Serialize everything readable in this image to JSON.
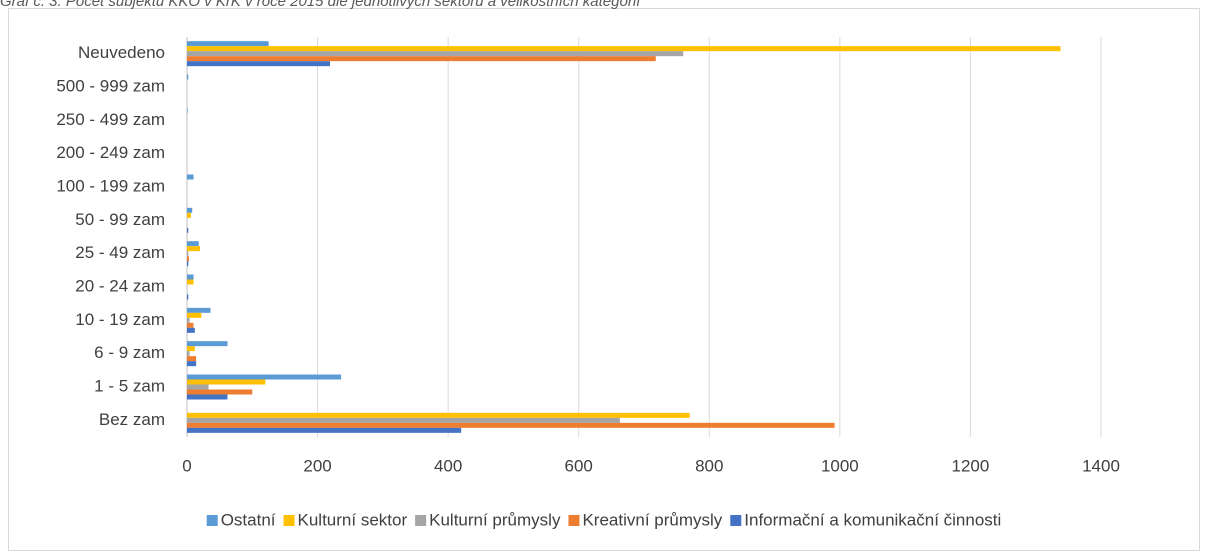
{
  "chart_data": {
    "type": "hbar",
    "title": "Graf č. 3: Počet subjektů KKO v KrK v roce 2015 dle jednotlivých sektorů a velikostních kategorií",
    "categories": [
      "Neuvedeno",
      "500 - 999 zam",
      "250 - 499 zam",
      "200 - 249 zam",
      "100 - 199 zam",
      "50 - 99 zam",
      "25 - 49 zam",
      "20 - 24 zam",
      "10 - 19 zam",
      "6 - 9 zam",
      "1 - 5 zam",
      "Bez zam"
    ],
    "series": [
      {
        "name": "Ostatní",
        "color": "#5b9bd5",
        "values": [
          125,
          2,
          1,
          0,
          10,
          8,
          18,
          10,
          36,
          62,
          236,
          0
        ]
      },
      {
        "name": "Kulturní sektor",
        "color": "#ffc000",
        "values": [
          1338,
          0,
          0,
          0,
          0,
          6,
          20,
          10,
          22,
          12,
          120,
          770
        ]
      },
      {
        "name": "Kulturní průmysly",
        "color": "#a5a5a5",
        "values": [
          760,
          0,
          0,
          0,
          0,
          0,
          2,
          0,
          4,
          4,
          33,
          663
        ]
      },
      {
        "name": "Kreativní průmysly",
        "color": "#ed7d31",
        "values": [
          718,
          0,
          0,
          0,
          0,
          0,
          3,
          0,
          10,
          14,
          100,
          992
        ]
      },
      {
        "name": "Informační a komunikační činnosti",
        "color": "#4472c4",
        "values": [
          219,
          0,
          0,
          0,
          0,
          2,
          2,
          2,
          12,
          14,
          62,
          420
        ]
      }
    ],
    "xlim": [
      0,
      1400
    ],
    "xticks": [
      0,
      200,
      400,
      600,
      800,
      1000,
      1200,
      1400
    ],
    "grid": true,
    "legend": "bottom"
  }
}
